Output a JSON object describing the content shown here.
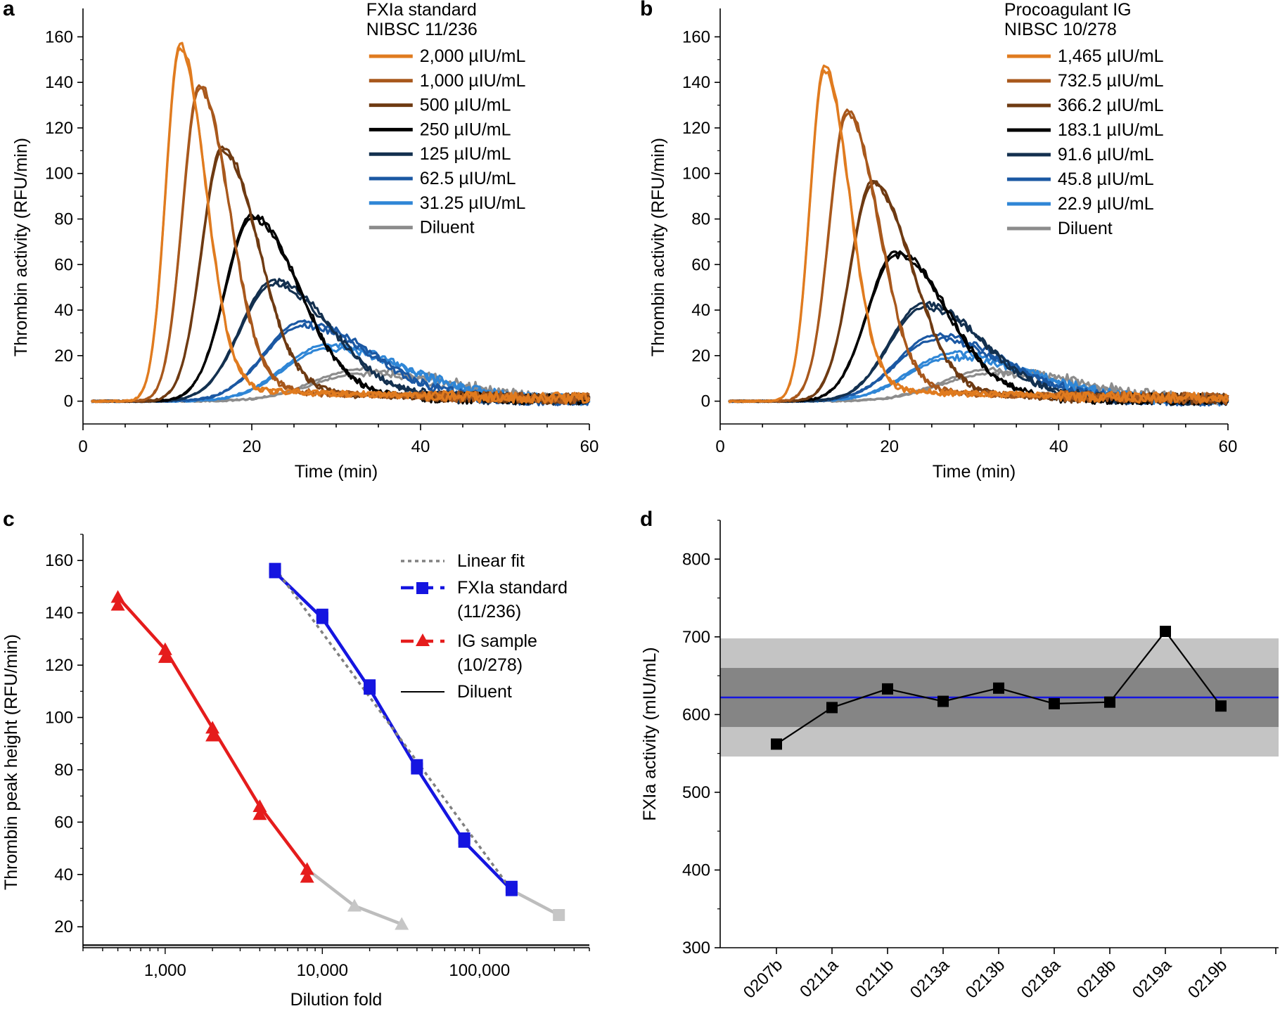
{
  "chart_data": [
    {
      "panel": "a",
      "type": "line",
      "legend_title": [
        "FXIa standard",
        "NIBSC 11/236"
      ],
      "xlabel": "Time (min)",
      "ylabel": "Thrombin activity (RFU/min)",
      "xlim": [
        0,
        60
      ],
      "ylim": [
        -10,
        170
      ],
      "xticks": [
        0,
        20,
        40,
        60
      ],
      "yticks": [
        0,
        20,
        40,
        60,
        80,
        100,
        120,
        140,
        160
      ],
      "legend_position": "top-right",
      "series": [
        {
          "name": "2,000 µIU/mL",
          "color": "#e07b1f",
          "peak_time": 11.5,
          "peak": 156,
          "width": 1.6
        },
        {
          "name": "1,000 µIU/mL",
          "color": "#a8581c",
          "peak_time": 13.8,
          "peak": 138,
          "width": 1.9
        },
        {
          "name": "500 µIU/mL",
          "color": "#6e3a12",
          "peak_time": 16.5,
          "peak": 111,
          "width": 2.3
        },
        {
          "name": "250 µIU/mL",
          "color": "#000000",
          "peak_time": 20,
          "peak": 81,
          "width": 3.0
        },
        {
          "name": "125 µIU/mL",
          "color": "#13304f",
          "peak_time": 22.5,
          "peak": 52,
          "width": 3.7
        },
        {
          "name": "62.5 µIU/mL",
          "color": "#1b58a3",
          "peak_time": 26,
          "peak": 34,
          "width": 4.3
        },
        {
          "name": "31.25 µIU/mL",
          "color": "#2f86d6",
          "peak_time": 29,
          "peak": 24,
          "width": 4.9
        },
        {
          "name": "Diluent",
          "color": "#8c8c8c",
          "peak_time": 33,
          "peak": 13,
          "width": 5.5
        }
      ]
    },
    {
      "panel": "b",
      "type": "line",
      "legend_title": [
        "Procoagulant IG",
        "NIBSC 10/278"
      ],
      "xlabel": "Time (min)",
      "ylabel": "Thrombin activity (RFU/min)",
      "xlim": [
        0,
        60
      ],
      "ylim": [
        -10,
        170
      ],
      "xticks": [
        0,
        20,
        40,
        60
      ],
      "yticks": [
        0,
        20,
        40,
        60,
        80,
        100,
        120,
        140,
        160
      ],
      "legend_position": "top-right",
      "series": [
        {
          "name": "1,465 µIU/mL",
          "color": "#e07b1f",
          "peak_time": 12.3,
          "peak": 146,
          "width": 1.6
        },
        {
          "name": "732.5 µIU/mL",
          "color": "#a8581c",
          "peak_time": 15,
          "peak": 127,
          "width": 2.0
        },
        {
          "name": "366.2 µIU/mL",
          "color": "#6e3a12",
          "peak_time": 18,
          "peak": 96,
          "width": 2.5
        },
        {
          "name": "183.1 µIU/mL",
          "color": "#000000",
          "peak_time": 20.8,
          "peak": 65,
          "width": 3.2
        },
        {
          "name": "91.6 µIU/mL",
          "color": "#13304f",
          "peak_time": 24,
          "peak": 42,
          "width": 3.8
        },
        {
          "name": "45.8 µIU/mL",
          "color": "#1b58a3",
          "peak_time": 25.5,
          "peak": 28,
          "width": 4.4
        },
        {
          "name": "22.9 µIU/mL",
          "color": "#2f86d6",
          "peak_time": 27.5,
          "peak": 20,
          "width": 5.0
        },
        {
          "name": "Diluent",
          "color": "#8c8c8c",
          "peak_time": 32,
          "peak": 13,
          "width": 5.5
        }
      ]
    },
    {
      "panel": "c",
      "type": "line",
      "xlabel": "Dilution fold",
      "ylabel": "Thrombin peak height (RFU/min)",
      "xscale": "log",
      "xlim": [
        300,
        500000
      ],
      "ylim": [
        12,
        170
      ],
      "xticks": [
        1000,
        10000,
        100000
      ],
      "xtick_labels": [
        "1,000",
        "10,000",
        "100,000"
      ],
      "yticks": [
        20,
        40,
        60,
        80,
        100,
        120,
        140,
        160
      ],
      "legend_position": "top-right",
      "legend": [
        {
          "name": "Linear fit",
          "style": "dotted",
          "color": "#808080"
        },
        {
          "name": "FXIa standard",
          "name2": "(11/236)",
          "color": "#1515e0",
          "marker": "square"
        },
        {
          "name": "IG sample",
          "name2": "(10/278)",
          "color": "#e51c1c",
          "marker": "triangle"
        },
        {
          "name": "Diluent",
          "color": "#000000",
          "style": "solid"
        }
      ],
      "series": [
        {
          "name": "FXIa standard",
          "x": [
            5000,
            10000,
            20000,
            40000,
            80000,
            160000
          ],
          "y": [
            155.5,
            138,
            111,
            80.5,
            52.5,
            34
          ],
          "gray_x": [
            160000,
            320000
          ],
          "gray_y": [
            34,
            24.5
          ]
        },
        {
          "name": "IG sample",
          "x": [
            500,
            1000,
            2000,
            4000,
            8000
          ],
          "y": [
            146,
            126,
            96,
            66,
            42
          ],
          "gray_x": [
            8000,
            16000,
            32000
          ],
          "gray_y": [
            42,
            28,
            21
          ]
        },
        {
          "name": "Linear fit",
          "x": [
            5000,
            160000
          ],
          "y": [
            157,
            34
          ]
        },
        {
          "name": "Diluent",
          "y": 13
        }
      ]
    },
    {
      "panel": "d",
      "type": "line",
      "xlabel": "",
      "ylabel": "FXIa activity (mIU/mL)",
      "categories": [
        "0207b",
        "0211a",
        "0211b",
        "0213a",
        "0213b",
        "0218a",
        "0218b",
        "0219a",
        "0219b"
      ],
      "values": [
        562,
        609,
        633,
        617,
        634,
        614,
        616,
        707,
        611
      ],
      "ylim": [
        300,
        850
      ],
      "yticks": [
        300,
        400,
        500,
        600,
        700,
        800
      ],
      "mean_line": 622,
      "band_inner": [
        584,
        660
      ],
      "band_outer": [
        546,
        698
      ]
    }
  ]
}
